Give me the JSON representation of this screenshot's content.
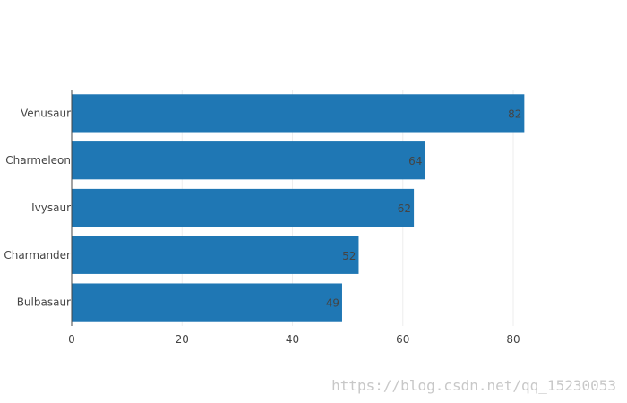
{
  "chart_data": {
    "type": "bar",
    "orientation": "horizontal",
    "categories": [
      "Venusaur",
      "Charmeleon",
      "Ivysaur",
      "Charmander",
      "Bulbasaur"
    ],
    "values": [
      82,
      64,
      62,
      52,
      49
    ],
    "data_labels": [
      "82",
      "64",
      "62",
      "52",
      "49"
    ],
    "xlim": [
      0,
      86
    ],
    "x_ticks": [
      0,
      20,
      40,
      60,
      80
    ],
    "grid": true,
    "bar_color": "#1f77b4",
    "title": "",
    "xlabel": "",
    "ylabel": ""
  },
  "watermark": "https://blog.csdn.net/qq_15230053"
}
